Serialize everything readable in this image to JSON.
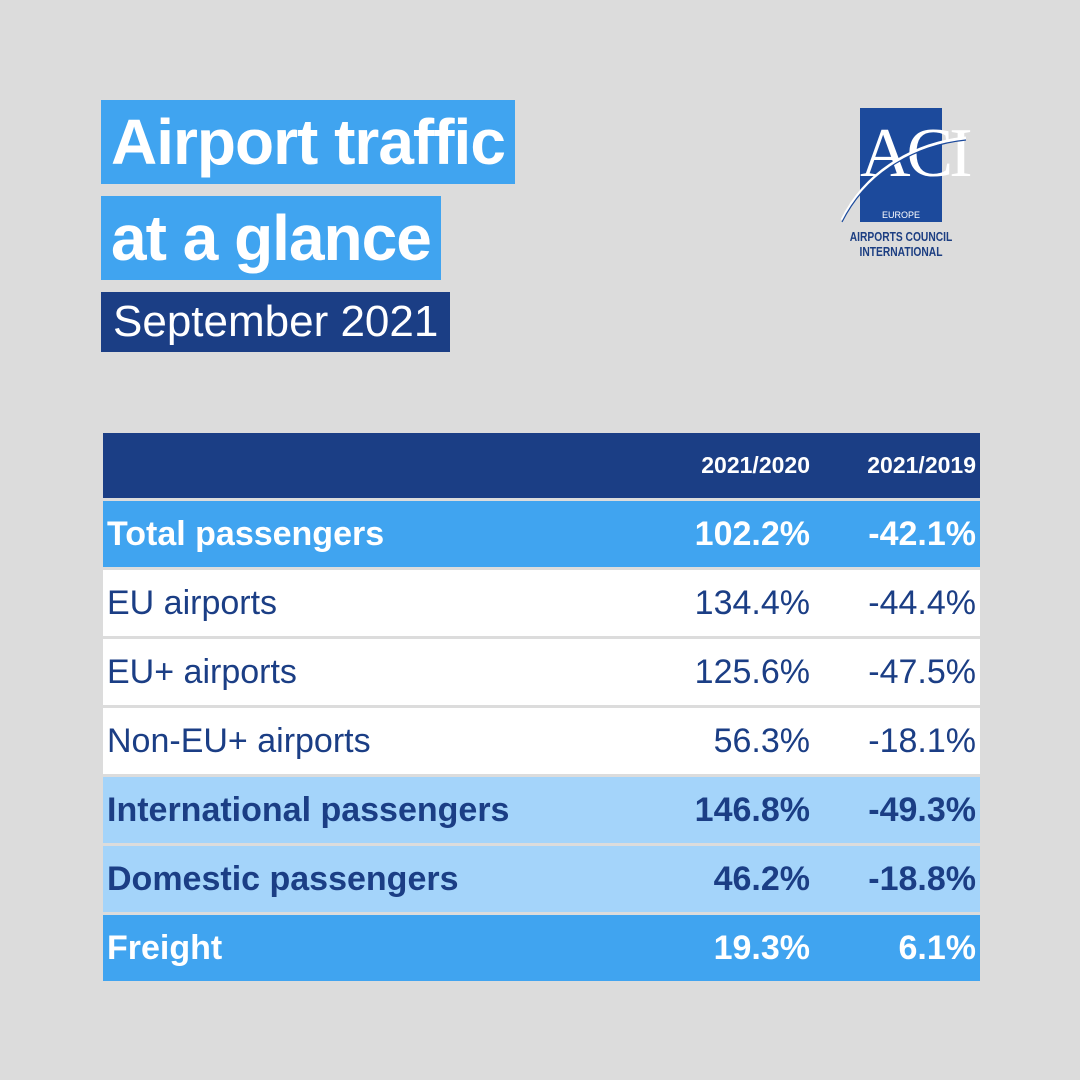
{
  "title_line1": "Airport traffic",
  "title_line2": "at a glance",
  "subtitle": "September 2021",
  "logo": {
    "mark": "ACI",
    "region": "EUROPE",
    "caption_line1": "AIRPORTS COUNCIL",
    "caption_line2": "INTERNATIONAL"
  },
  "chart_data": {
    "type": "table",
    "columns": [
      "",
      "2021/2020",
      "2021/2019"
    ],
    "rows": [
      {
        "label": "Total passengers",
        "v2020": "102.2%",
        "v2019": "-42.1%",
        "style": "total"
      },
      {
        "label": "EU airports",
        "v2020": "134.4%",
        "v2019": "-44.4%",
        "style": "sub"
      },
      {
        "label": "EU+ airports",
        "v2020": "125.6%",
        "v2019": "-47.5%",
        "style": "sub"
      },
      {
        "label": "Non-EU+ airports",
        "v2020": "56.3%",
        "v2019": "-18.1%",
        "style": "sub"
      },
      {
        "label": "International passengers",
        "v2020": "146.8%",
        "v2019": "-49.3%",
        "style": "segment"
      },
      {
        "label": "Domestic passengers",
        "v2020": "46.2%",
        "v2019": "-18.8%",
        "style": "segment"
      },
      {
        "label": "Freight",
        "v2020": "19.3%",
        "v2019": "6.1%",
        "style": "total"
      }
    ]
  },
  "colors": {
    "background": "#dcdcdc",
    "accent_blue": "#40a4f0",
    "navy": "#1b3e85",
    "light_blue": "#a4d4fa"
  }
}
